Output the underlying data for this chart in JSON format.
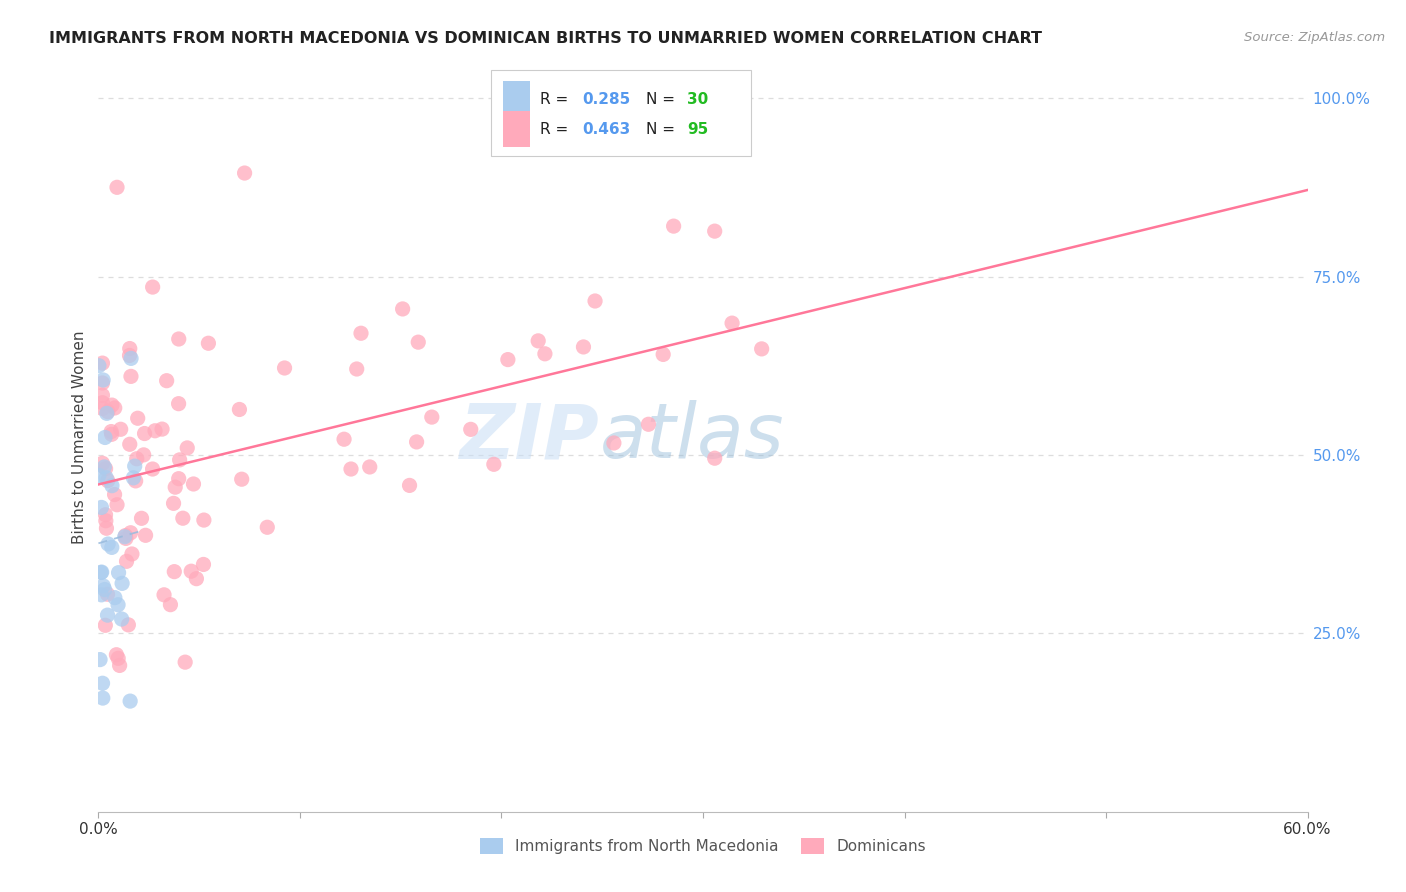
{
  "title": "IMMIGRANTS FROM NORTH MACEDONIA VS DOMINICAN BIRTHS TO UNMARRIED WOMEN CORRELATION CHART",
  "source": "Source: ZipAtlas.com",
  "ylabel": "Births to Unmarried Women",
  "legend_blue_R": "0.285",
  "legend_blue_N": "30",
  "legend_pink_R": "0.463",
  "legend_pink_N": "95",
  "blue_color": "#aaccee",
  "pink_color": "#ffaabb",
  "blue_line_color": "#99bbdd",
  "pink_line_color": "#ff7799",
  "watermark_zip": "ZIP",
  "watermark_atlas": "atlas",
  "background_color": "#ffffff",
  "grid_color": "#dddddd",
  "right_tick_color": "#5599ee",
  "text_color": "#333333",
  "source_color": "#999999",
  "xlim_min": 0.0,
  "xlim_max": 0.6,
  "ylim_min": 0.0,
  "ylim_max": 1.05,
  "right_ytick_vals": [
    0.25,
    0.5,
    0.75,
    1.0
  ],
  "right_ytick_labels": [
    "25.0%",
    "50.0%",
    "75.0%",
    "100.0%"
  ]
}
